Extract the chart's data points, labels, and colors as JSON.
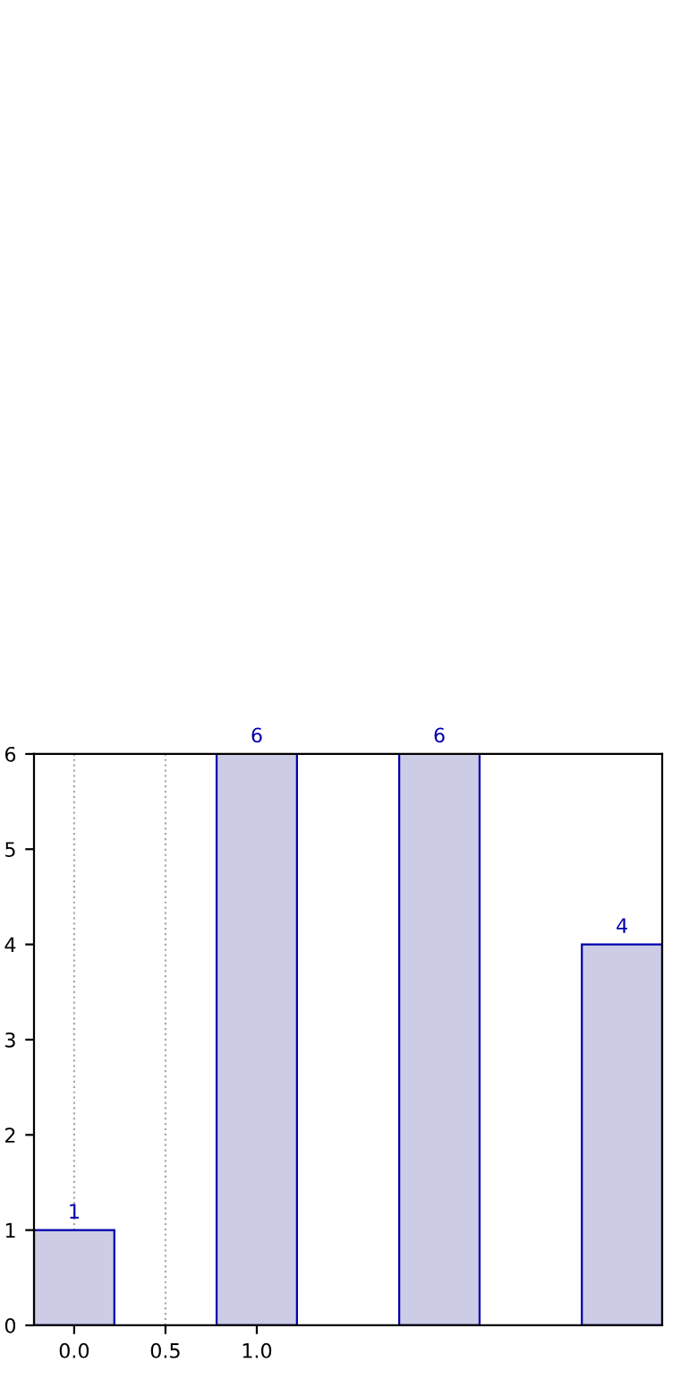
{
  "chart_data": {
    "type": "bar",
    "x": [
      0,
      1,
      2,
      3
    ],
    "values": [
      1,
      6,
      6,
      4
    ],
    "color": "#cccce6",
    "data_labels": true,
    "xlim": [
      -0.22,
      3.22
    ],
    "xticks": [
      {
        "value": 0,
        "label": "0.0"
      },
      {
        "value": 0.5,
        "label": "0.5"
      },
      {
        "value": 1,
        "label": "1.0"
      }
    ],
    "ylim": [
      0,
      6
    ],
    "yticks": [
      0,
      1,
      2,
      3,
      4,
      5,
      6
    ],
    "grid": "x"
  }
}
